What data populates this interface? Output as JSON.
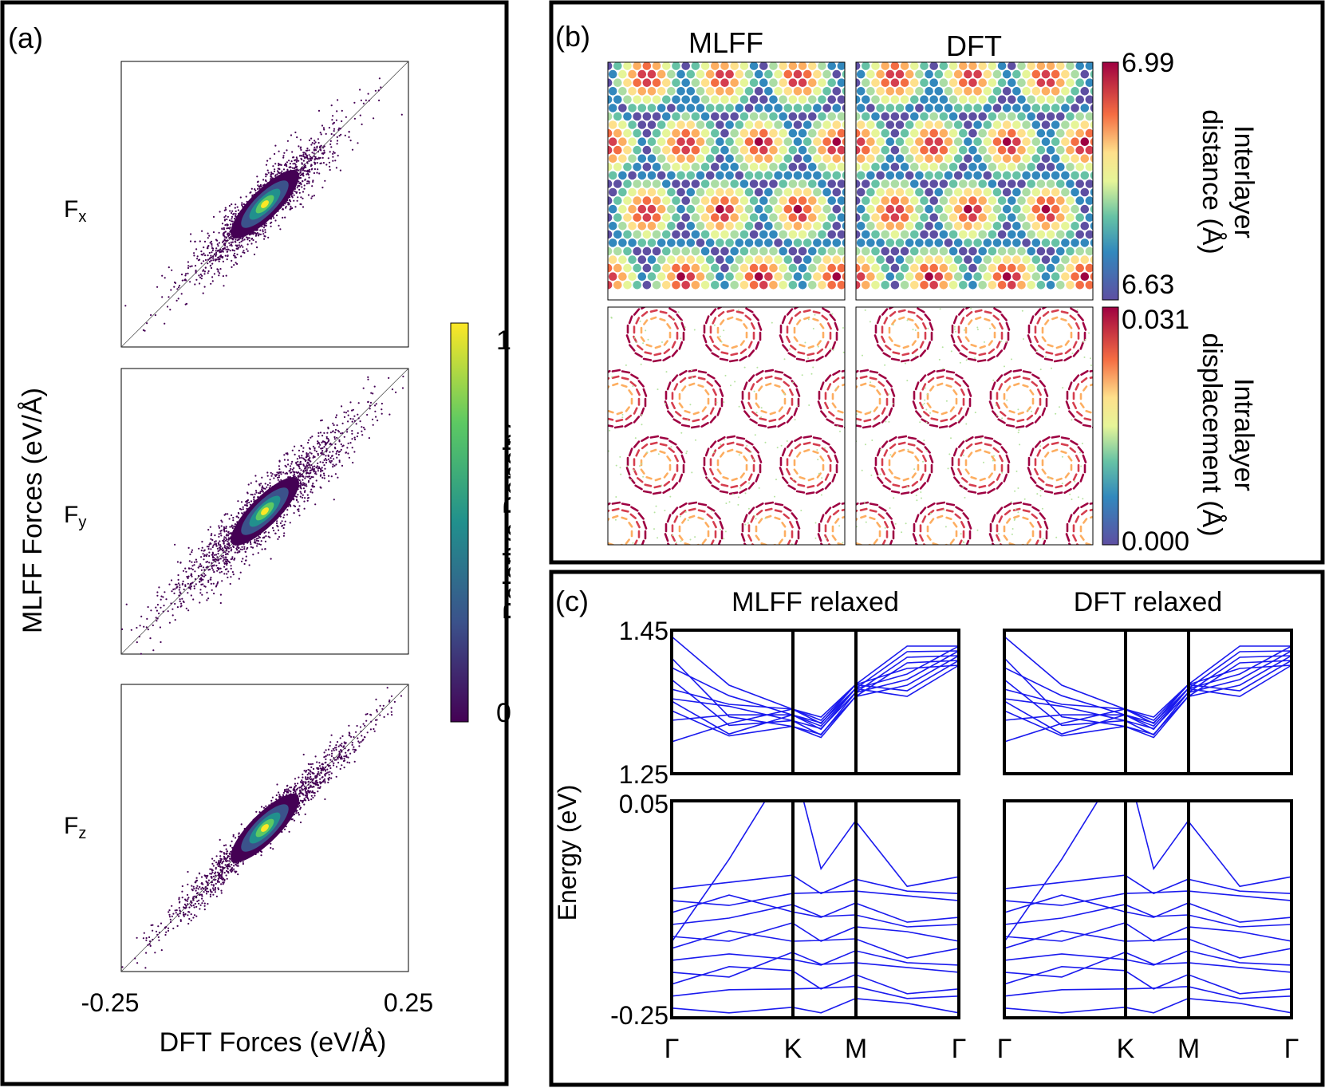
{
  "panel_a": {
    "label": "(a)",
    "ylabel": "MLFF Forces (eV/Å)",
    "xlabel": "DFT Forces (eV/Å)",
    "xtick_min": "-0.25",
    "xtick_max": "0.25",
    "row_labels": [
      {
        "main": "F",
        "sub": "x"
      },
      {
        "main": "F",
        "sub": "y"
      },
      {
        "main": "F",
        "sub": "z"
      }
    ],
    "colorbar": {
      "label": "Relative Density",
      "max_label": "1",
      "min_label": "0"
    }
  },
  "panel_b": {
    "label": "(b)",
    "col_titles": [
      "MLFF",
      "DFT"
    ],
    "cb1": {
      "max": "6.99",
      "min": "6.63",
      "label_line1": "Interlayer",
      "label_line2": "distance (Å)"
    },
    "cb2": {
      "max": "0.031",
      "min": "0.000",
      "label_line1": "Intralayer",
      "label_line2": "displacement (Å)"
    }
  },
  "panel_c": {
    "label": "(c)",
    "titles": [
      "MLFF relaxed",
      "DFT relaxed"
    ],
    "ylabel": "Energy (eV)",
    "yticks": [
      "1.45",
      "1.25",
      "0.05",
      "-0.25"
    ],
    "kpoints": [
      "Γ",
      "K",
      "M",
      "Γ"
    ]
  },
  "chart_data": [
    {
      "type": "scatter",
      "title": "Fx",
      "xlabel": "DFT Forces (eV/Å)",
      "ylabel": "MLFF Forces (eV/Å)",
      "xlim": [
        -0.25,
        0.25
      ],
      "ylim": [
        -0.25,
        0.25
      ],
      "colorbar": "Relative Density",
      "note": "density-colored parity scatter about y = x"
    },
    {
      "type": "scatter",
      "title": "Fy",
      "xlabel": "DFT Forces (eV/Å)",
      "ylabel": "MLFF Forces (eV/Å)",
      "xlim": [
        -0.25,
        0.25
      ],
      "ylim": [
        -0.25,
        0.25
      ]
    },
    {
      "type": "scatter",
      "title": "Fz",
      "xlabel": "DFT Forces (eV/Å)",
      "ylabel": "MLFF Forces (eV/Å)",
      "xlim": [
        -0.25,
        0.25
      ],
      "ylim": [
        -0.25,
        0.25
      ]
    },
    {
      "type": "heatmap",
      "title": "Interlayer distance (Å) — MLFF vs DFT",
      "range": [
        6.63,
        6.99
      ]
    },
    {
      "type": "heatmap",
      "title": "Intralayer displacement (Å) — MLFF vs DFT",
      "range": [
        0.0,
        0.031
      ]
    },
    {
      "type": "line",
      "title": "MLFF relaxed / DFT relaxed band structures",
      "ylabel": "Energy (eV)",
      "x_ticks": [
        "Γ",
        "K",
        "M",
        "Γ"
      ],
      "ylim_upper": [
        1.25,
        1.45
      ],
      "ylim_lower": [
        -0.25,
        0.05
      ]
    }
  ]
}
